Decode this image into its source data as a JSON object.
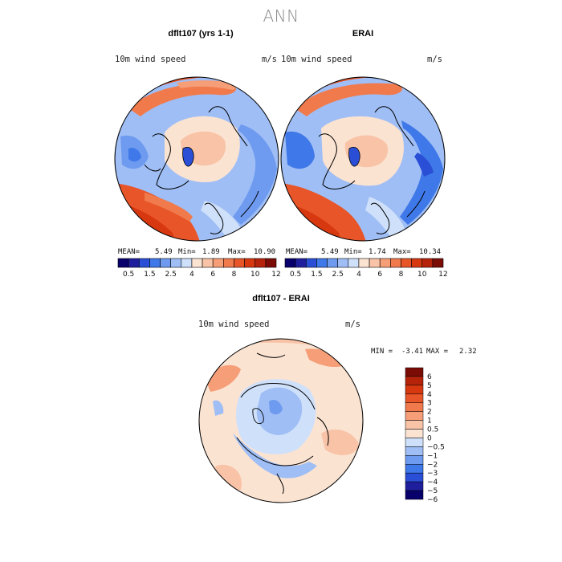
{
  "figure": {
    "title": "ANN"
  },
  "panels": {
    "model": {
      "title": "dflt107 (yrs 1-1)",
      "variable_label": "10m wind speed",
      "units": "m/s",
      "stats": {
        "mean_label": "MEAN=",
        "mean": "5.49",
        "min_label": "Min=",
        "min": "1.89",
        "max_label": "Max=",
        "max": "10.90"
      }
    },
    "obs": {
      "title": "ERAI",
      "variable_label": "10m wind speed",
      "units": "m/s",
      "stats": {
        "mean_label": "MEAN=",
        "mean": "5.49",
        "min_label": "Min=",
        "min": "1.74",
        "max_label": "Max=",
        "max": "10.34"
      }
    },
    "diff": {
      "title": "dflt107 - ERAI",
      "variable_label": "10m wind speed",
      "units": "m/s",
      "stats": {
        "min_label": "MIN =",
        "min": "-3.41",
        "max_label": "MAX =",
        "max": "2.32"
      }
    }
  },
  "chart_data": [
    {
      "type": "heatmap",
      "projection": "north-polar-stereographic",
      "title": "dflt107 (yrs 1-1)",
      "subtitle": "10m wind speed",
      "units": "m/s",
      "summary": {
        "mean": 5.49,
        "min": 1.89,
        "max": 10.9
      },
      "colorbar": {
        "orientation": "horizontal",
        "levels": [
          0.5,
          1,
          1.5,
          2,
          2.5,
          3,
          4,
          5,
          6,
          7,
          8,
          9,
          10,
          11,
          12
        ],
        "tick_labels": [
          "0.5",
          "1.5",
          "2.5",
          "4",
          "6",
          "8",
          "10",
          "12"
        ]
      }
    },
    {
      "type": "heatmap",
      "projection": "north-polar-stereographic",
      "title": "ERAI",
      "subtitle": "10m wind speed",
      "units": "m/s",
      "summary": {
        "mean": 5.49,
        "min": 1.74,
        "max": 10.34
      },
      "colorbar": {
        "orientation": "horizontal",
        "levels": [
          0.5,
          1,
          1.5,
          2,
          2.5,
          3,
          4,
          5,
          6,
          7,
          8,
          9,
          10,
          11,
          12
        ],
        "tick_labels": [
          "0.5",
          "1.5",
          "2.5",
          "4",
          "6",
          "8",
          "10",
          "12"
        ]
      }
    },
    {
      "type": "heatmap",
      "projection": "north-polar-stereographic",
      "title": "dflt107 - ERAI",
      "subtitle": "10m wind speed",
      "units": "m/s",
      "summary": {
        "min": -3.41,
        "max": 2.32
      },
      "colorbar": {
        "orientation": "vertical",
        "levels": [
          -6,
          -5,
          -4,
          -3,
          -2,
          -1,
          -0.5,
          0,
          0.5,
          1,
          2,
          3,
          4,
          5,
          6
        ],
        "tick_labels": [
          "6",
          "5",
          "4",
          "3",
          "2",
          "1",
          "0.5",
          "0",
          "−0.5",
          "−1",
          "−2",
          "−3",
          "−4",
          "−5",
          "−6"
        ]
      }
    }
  ],
  "colors": {
    "abs_scale": [
      "#08006b",
      "#1f1f9e",
      "#2a4fd6",
      "#3f78e8",
      "#6e9bf0",
      "#9fbef5",
      "#cfe0fa",
      "#fbe3d2",
      "#f8c3a6",
      "#f59e78",
      "#f07a4c",
      "#e85528",
      "#d8380f",
      "#b5230a",
      "#7a0c05"
    ],
    "diff_scale": [
      "#7a0c05",
      "#b5230a",
      "#d8380f",
      "#e85528",
      "#f07a4c",
      "#f59e78",
      "#f8c3a6",
      "#fbe3d2",
      "#cfe0fa",
      "#9fbef5",
      "#6e9bf0",
      "#3f78e8",
      "#2a4fd6",
      "#1f1f9e",
      "#08006b"
    ]
  }
}
